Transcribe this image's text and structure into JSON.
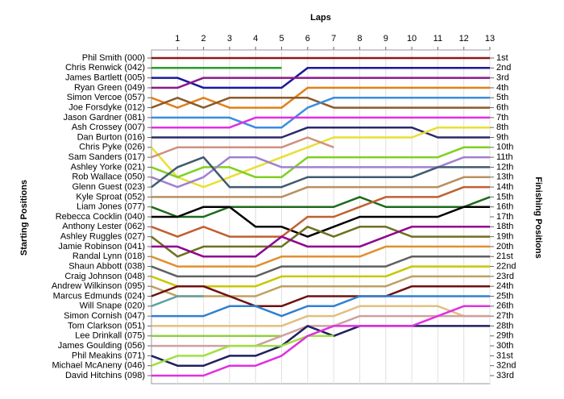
{
  "chart_data": {
    "type": "line",
    "title": "Laps",
    "y_label": "Starting Positions",
    "y2_label": "Finishing Positions",
    "x": [
      0,
      1,
      2,
      3,
      4,
      5,
      6,
      7,
      8,
      9,
      10,
      11,
      12,
      13
    ],
    "xlim": [
      0,
      13
    ],
    "xticks": [
      1,
      2,
      3,
      4,
      5,
      6,
      7,
      8,
      9,
      10,
      11,
      12,
      13
    ],
    "ylim": [
      33,
      1
    ],
    "grid": true,
    "y2ticks": [
      {
        "value": 1,
        "label": "1st"
      },
      {
        "value": 2,
        "label": "2nd"
      },
      {
        "value": 3,
        "label": "3rd"
      },
      {
        "value": 4,
        "label": "4th"
      },
      {
        "value": 5,
        "label": "5th"
      },
      {
        "value": 6,
        "label": "6th"
      },
      {
        "value": 7,
        "label": "7th"
      },
      {
        "value": 8,
        "label": "8th"
      },
      {
        "value": 9,
        "label": "9th"
      },
      {
        "value": 10,
        "label": "10th"
      },
      {
        "value": 11,
        "label": "11th"
      },
      {
        "value": 12,
        "label": "12th"
      },
      {
        "value": 13,
        "label": "13th"
      },
      {
        "value": 14,
        "label": "14th"
      },
      {
        "value": 15,
        "label": "15th"
      },
      {
        "value": 16,
        "label": "16th"
      },
      {
        "value": 17,
        "label": "17th"
      },
      {
        "value": 18,
        "label": "18th"
      },
      {
        "value": 19,
        "label": "19th"
      },
      {
        "value": 20,
        "label": "20th"
      },
      {
        "value": 21,
        "label": "21st"
      },
      {
        "value": 22,
        "label": "22nd"
      },
      {
        "value": 23,
        "label": "23rd"
      },
      {
        "value": 24,
        "label": "24th"
      },
      {
        "value": 25,
        "label": "25th"
      },
      {
        "value": 26,
        "label": "26th"
      },
      {
        "value": 27,
        "label": "27th"
      },
      {
        "value": 28,
        "label": "28th"
      },
      {
        "value": 29,
        "label": "29th"
      },
      {
        "value": 30,
        "label": "30th"
      },
      {
        "value": 31,
        "label": "31st"
      },
      {
        "value": 32,
        "label": "32nd"
      },
      {
        "value": 33,
        "label": "33rd"
      }
    ],
    "series": [
      {
        "name": "Phil Smith (000)",
        "color": "#8b1a1a",
        "values": [
          1,
          1,
          1,
          1,
          1,
          1,
          1,
          1,
          1,
          1,
          1,
          1,
          1,
          1
        ]
      },
      {
        "name": "Chris Renwick (042)",
        "color": "#2a9d2a",
        "values": [
          2,
          2,
          2,
          2,
          2,
          2,
          null,
          null,
          null,
          null,
          null,
          null,
          null,
          null
        ]
      },
      {
        "name": "James Bartlett (005)",
        "color": "#1a1a9c",
        "values": [
          3,
          3,
          4,
          4,
          4,
          4,
          2,
          2,
          2,
          2,
          2,
          2,
          2,
          2
        ]
      },
      {
        "name": "Ryan Green (049)",
        "color": "#8b1a8b",
        "values": [
          4,
          4,
          3,
          3,
          3,
          3,
          3,
          3,
          3,
          3,
          3,
          3,
          3,
          3
        ]
      },
      {
        "name": "Simon Vercoe (057)",
        "color": "#e0801a",
        "values": [
          5,
          6,
          5,
          6,
          6,
          6,
          4,
          4,
          4,
          4,
          4,
          4,
          4,
          4
        ]
      },
      {
        "name": "Joe Forsdyke (012)",
        "color": "#8b5a2b",
        "values": [
          6,
          5,
          6,
          5,
          5,
          5,
          5,
          6,
          6,
          6,
          6,
          6,
          6,
          6
        ]
      },
      {
        "name": "Jason Gardner (081)",
        "color": "#3a8ee0",
        "values": [
          7,
          7,
          7,
          7,
          8,
          8,
          6,
          5,
          5,
          5,
          5,
          5,
          5,
          5
        ]
      },
      {
        "name": "Ash Crossey (007)",
        "color": "#e030e0",
        "values": [
          8,
          8,
          8,
          8,
          7,
          7,
          7,
          7,
          7,
          7,
          7,
          7,
          7,
          7
        ]
      },
      {
        "name": "Dan Burton (016)",
        "color": "#2a2a6a",
        "values": [
          9,
          9,
          9,
          9,
          9,
          9,
          8,
          8,
          8,
          8,
          8,
          9,
          9,
          9
        ]
      },
      {
        "name": "Chris Pyke (026)",
        "color": "#e8e030",
        "values": [
          10,
          13,
          14,
          13,
          12,
          11,
          10,
          9,
          9,
          9,
          9,
          8,
          8,
          8
        ]
      },
      {
        "name": "Sam Sanders (017)",
        "color": "#d09080",
        "values": [
          11,
          10,
          10,
          10,
          10,
          10,
          9,
          10,
          null,
          null,
          null,
          null,
          null,
          null
        ]
      },
      {
        "name": "Ashley Yorke (021)",
        "color": "#80d020",
        "values": [
          12,
          13,
          12,
          12,
          13,
          13,
          11,
          11,
          11,
          11,
          11,
          11,
          10,
          10
        ]
      },
      {
        "name": "Rob Wallace (050)",
        "color": "#a080d0",
        "values": [
          13,
          14,
          13,
          11,
          11,
          12,
          12,
          12,
          12,
          12,
          12,
          12,
          11,
          11
        ]
      },
      {
        "name": "Glenn Guest (023)",
        "color": "#405a70",
        "values": [
          14,
          12,
          11,
          14,
          14,
          14,
          13,
          13,
          13,
          13,
          13,
          12,
          12,
          12
        ]
      },
      {
        "name": "Kyle Sproat (052)",
        "color": "#b89060",
        "values": [
          15,
          15,
          15,
          15,
          15,
          15,
          14,
          14,
          14,
          14,
          14,
          14,
          13,
          13
        ]
      },
      {
        "name": "Liam Jones (077)",
        "color": "#1e6a1e",
        "values": [
          16,
          17,
          17,
          16,
          16,
          16,
          16,
          16,
          15,
          16,
          16,
          16,
          16,
          15
        ]
      },
      {
        "name": "Rebecca Cocklin (040)",
        "color": "#000000",
        "values": [
          17,
          17,
          16,
          16,
          18,
          18,
          19,
          18,
          17,
          17,
          17,
          17,
          16,
          16
        ]
      },
      {
        "name": "Anthony Lester (062)",
        "color": "#c06030",
        "values": [
          18,
          19,
          18,
          19,
          19,
          19,
          17,
          17,
          16,
          15,
          15,
          15,
          14,
          14
        ]
      },
      {
        "name": "Ashley Ruggles (027)",
        "color": "#707020",
        "values": [
          19,
          21,
          20,
          20,
          20,
          20,
          18,
          19,
          18,
          18,
          19,
          19,
          19,
          19
        ]
      },
      {
        "name": "Jamie Robinson (041)",
        "color": "#900090",
        "values": [
          20,
          20,
          21,
          21,
          21,
          19,
          20,
          20,
          20,
          19,
          18,
          18,
          18,
          18
        ]
      },
      {
        "name": "Randal Lynn (018)",
        "color": "#e09030",
        "values": [
          21,
          22,
          22,
          22,
          22,
          21,
          21,
          21,
          21,
          20,
          20,
          20,
          20,
          20
        ]
      },
      {
        "name": "Shaun Abbott (038)",
        "color": "#606060",
        "values": [
          22,
          23,
          23,
          23,
          23,
          22,
          22,
          22,
          22,
          22,
          21,
          21,
          21,
          21
        ]
      },
      {
        "name": "Craig Johnson (048)",
        "color": "#c8c800",
        "values": [
          23,
          24,
          24,
          24,
          24,
          23,
          23,
          23,
          23,
          23,
          22,
          22,
          22,
          22
        ]
      },
      {
        "name": "Andrew Wilkinson (095)",
        "color": "#c0a060",
        "values": [
          24,
          25,
          25,
          25,
          25,
          24,
          24,
          24,
          24,
          24,
          23,
          23,
          23,
          23
        ]
      },
      {
        "name": "Marcus Edmunds (024)",
        "color": "#701010",
        "values": [
          25,
          24,
          24,
          25,
          26,
          26,
          25,
          25,
          25,
          25,
          24,
          24,
          24,
          24
        ]
      },
      {
        "name": "Will Snape (020)",
        "color": "#60a0a0",
        "values": [
          26,
          25,
          25,
          null,
          null,
          null,
          null,
          null,
          null,
          null,
          null,
          null,
          null,
          null
        ]
      },
      {
        "name": "Simon Cornish (047)",
        "color": "#3080d0",
        "values": [
          27,
          27,
          27,
          26,
          26,
          27,
          26,
          26,
          25,
          25,
          25,
          25,
          25,
          25
        ]
      },
      {
        "name": "Tom Clarkson (051)",
        "color": "#e0c080",
        "values": [
          28,
          28,
          28,
          28,
          28,
          28,
          27,
          27,
          26,
          26,
          26,
          26,
          27,
          27
        ]
      },
      {
        "name": "Lee Drinkall (075)",
        "color": "#90d040",
        "values": [
          29,
          29,
          29,
          29,
          29,
          29,
          null,
          null,
          null,
          null,
          null,
          null,
          null,
          null
        ]
      },
      {
        "name": "James Goulding (056)",
        "color": "#d0a0a0",
        "values": [
          30,
          30,
          30,
          30,
          30,
          29,
          28,
          28,
          27,
          27,
          27,
          27,
          27,
          27
        ]
      },
      {
        "name": "Phil Meakins (071)",
        "color": "#202060",
        "values": [
          31,
          32,
          32,
          31,
          31,
          30,
          28,
          29,
          28,
          28,
          28,
          28,
          28,
          28
        ]
      },
      {
        "name": "Michael McAneny (046)",
        "color": "#a0e040",
        "values": [
          32,
          31,
          31,
          30,
          30,
          30,
          29,
          29,
          null,
          null,
          null,
          null,
          null,
          null
        ]
      },
      {
        "name": "David Hitchins (098)",
        "color": "#e030e0",
        "values": [
          33,
          33,
          33,
          32,
          32,
          31,
          29,
          28,
          28,
          28,
          28,
          27,
          26,
          26
        ]
      }
    ]
  }
}
